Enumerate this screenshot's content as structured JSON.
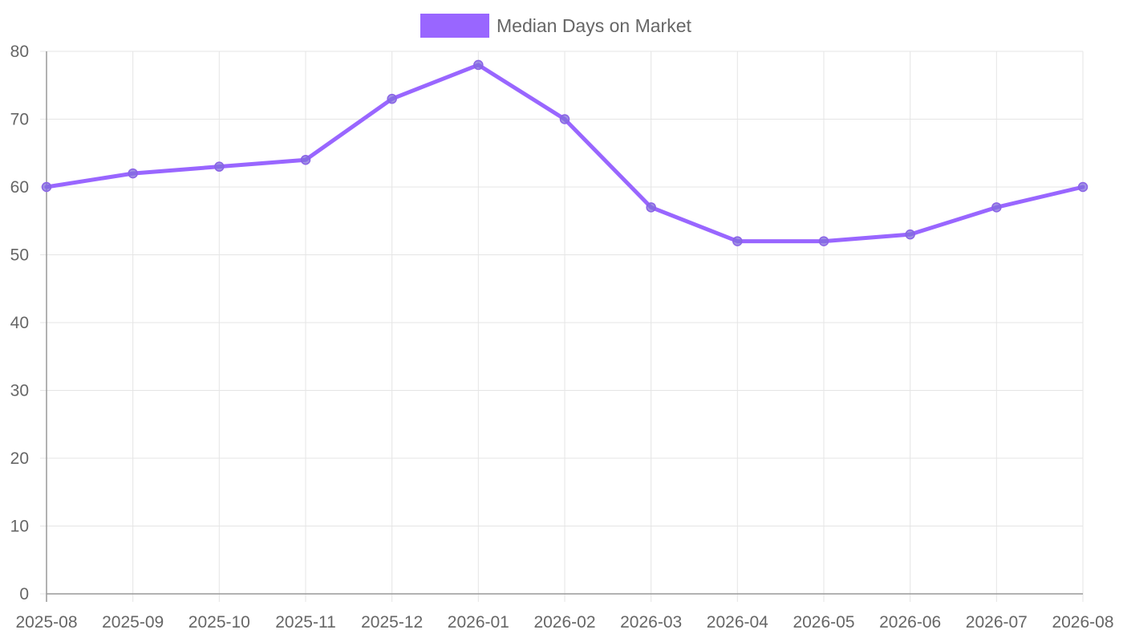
{
  "chart_data": {
    "type": "line",
    "title": "",
    "xlabel": "",
    "ylabel": "",
    "categories": [
      "2025-08",
      "2025-09",
      "2025-10",
      "2025-11",
      "2025-12",
      "2026-01",
      "2026-02",
      "2026-03",
      "2026-04",
      "2026-05",
      "2026-06",
      "2026-07",
      "2026-08"
    ],
    "series": [
      {
        "name": "Median Days on Market",
        "values": [
          60,
          62,
          63,
          64,
          73,
          78,
          70,
          57,
          52,
          52,
          53,
          57,
          60
        ],
        "color": "#9966ff"
      }
    ],
    "ylim": [
      0,
      80
    ],
    "yticks": [
      0,
      10,
      20,
      30,
      40,
      50,
      60,
      70,
      80
    ],
    "grid": true,
    "legend_position": "top-center"
  }
}
